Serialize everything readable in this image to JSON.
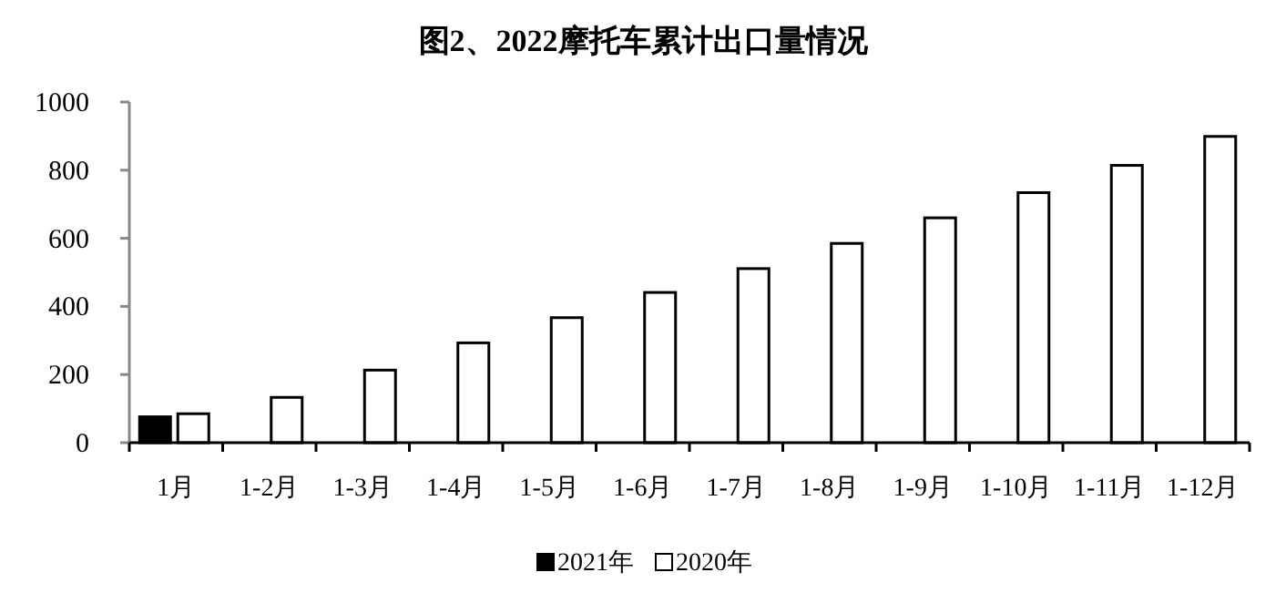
{
  "chart_data": {
    "type": "bar",
    "title": "图2、2022摩托车累计出口量情况",
    "categories": [
      "1月",
      "1-2月",
      "1-3月",
      "1-4月",
      "1-5月",
      "1-6月",
      "1-7月",
      "1-8月",
      "1-9月",
      "1-10月",
      "1-11月",
      "1-12月"
    ],
    "series": [
      {
        "name": "2021年",
        "color": "#000000",
        "values": [
          76,
          null,
          null,
          null,
          null,
          null,
          null,
          null,
          null,
          null,
          null,
          null
        ]
      },
      {
        "name": "2020年",
        "color": "#ffffff",
        "values": [
          85,
          133,
          213,
          293,
          367,
          441,
          511,
          585,
          660,
          734,
          814,
          899
        ]
      }
    ],
    "ylim": [
      0,
      1000
    ],
    "yticks": [
      0,
      200,
      400,
      600,
      800,
      1000
    ],
    "legend": "bottom",
    "grid": false
  }
}
